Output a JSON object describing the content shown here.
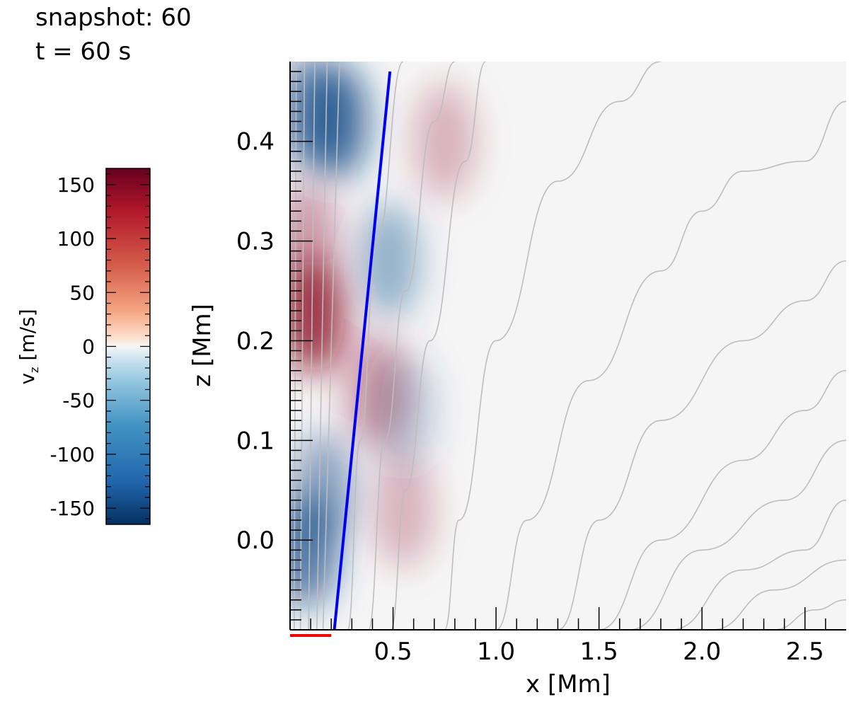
{
  "header": {
    "snapshot_text": "snapshot: 60",
    "time_text": "t = 60 s"
  },
  "colors": {
    "positive": "#8b0a26",
    "negative": "#0e4a87",
    "neutral": "#f7f7f7",
    "field_lines": "#bdbdbd",
    "blue_line": "#0000ee",
    "red_marker": "#ee0000"
  },
  "chart_data": {
    "type": "heatmap",
    "title": "",
    "xlabel": "x [Mm]",
    "ylabel": "z [Mm]",
    "xlim": [
      0.0,
      2.7
    ],
    "ylim": [
      -0.09,
      0.48
    ],
    "xticks": [
      0.5,
      1.0,
      1.5,
      2.0,
      2.5
    ],
    "xtick_labels": [
      "0.5",
      "1.0",
      "1.5",
      "2.0",
      "2.5"
    ],
    "yticks": [
      0.0,
      0.1,
      0.2,
      0.3,
      0.4
    ],
    "ytick_labels": [
      "0.0",
      "0.1",
      "0.2",
      "0.3",
      "0.4"
    ],
    "colorbar": {
      "label": "v",
      "label_sub": "z",
      "label_unit": " [m/s]",
      "range": [
        -165,
        165
      ],
      "ticks": [
        150,
        100,
        50,
        0,
        -50,
        -100,
        -150
      ],
      "tick_labels": [
        "150",
        "100",
        "50",
        "0",
        "-50",
        "-100",
        "-150"
      ],
      "colormap": "RdBu_r"
    },
    "features": [
      {
        "sign": "negative",
        "x": 0.23,
        "z": 0.42,
        "amplitude": -120
      },
      {
        "sign": "negative",
        "x": 0.1,
        "z": 0.43,
        "amplitude": -90
      },
      {
        "sign": "positive",
        "x": 0.11,
        "z": 0.225,
        "amplitude": 140
      },
      {
        "sign": "positive",
        "x": 0.08,
        "z": 0.3,
        "amplitude": 40
      },
      {
        "sign": "negative",
        "x": 0.08,
        "z": -0.01,
        "amplitude": -110
      },
      {
        "sign": "negative",
        "x": 0.16,
        "z": 0.05,
        "amplitude": -60
      },
      {
        "sign": "negative",
        "x": 0.48,
        "z": 0.28,
        "amplitude": -45
      },
      {
        "sign": "negative",
        "x": 0.55,
        "z": 0.13,
        "amplitude": -15
      },
      {
        "sign": "positive",
        "x": 0.42,
        "z": 0.15,
        "amplitude": 40
      },
      {
        "sign": "positive",
        "x": 0.55,
        "z": 0.03,
        "amplitude": 15
      },
      {
        "sign": "positive",
        "x": 0.75,
        "z": 0.4,
        "amplitude": 18
      }
    ],
    "field_lines": [
      [
        [
          0.02,
          -0.09
        ],
        [
          0.03,
          0.48
        ]
      ],
      [
        [
          0.05,
          -0.09
        ],
        [
          0.07,
          0.48
        ]
      ],
      [
        [
          0.09,
          -0.09
        ],
        [
          0.12,
          0.48
        ]
      ],
      [
        [
          0.13,
          -0.09
        ],
        [
          0.18,
          0.48
        ]
      ],
      [
        [
          0.16,
          -0.09
        ],
        [
          0.24,
          0.48
        ]
      ],
      [
        [
          0.28,
          -0.09
        ],
        [
          0.34,
          0.1
        ],
        [
          0.42,
          0.3
        ],
        [
          0.55,
          0.48
        ]
      ],
      [
        [
          0.38,
          -0.09
        ],
        [
          0.46,
          0.1
        ],
        [
          0.56,
          0.25
        ],
        [
          0.7,
          0.42
        ],
        [
          0.8,
          0.48
        ]
      ],
      [
        [
          0.49,
          -0.09
        ],
        [
          0.56,
          0.05
        ],
        [
          0.68,
          0.2
        ],
        [
          0.85,
          0.38
        ],
        [
          0.95,
          0.48
        ]
      ],
      [
        [
          0.75,
          -0.09
        ],
        [
          0.82,
          0.02
        ],
        [
          1.0,
          0.2
        ],
        [
          1.3,
          0.36
        ],
        [
          1.6,
          0.44
        ],
        [
          1.8,
          0.48
        ]
      ],
      [
        [
          1.0,
          -0.09
        ],
        [
          1.15,
          0.02
        ],
        [
          1.45,
          0.16
        ],
        [
          1.8,
          0.27
        ],
        [
          2.0,
          0.33
        ],
        [
          2.2,
          0.37
        ],
        [
          2.5,
          0.38
        ],
        [
          2.7,
          0.44
        ]
      ],
      [
        [
          1.3,
          -0.09
        ],
        [
          1.5,
          0.02
        ],
        [
          1.8,
          0.12
        ],
        [
          2.2,
          0.2
        ],
        [
          2.5,
          0.24
        ],
        [
          2.7,
          0.28
        ]
      ],
      [
        [
          1.5,
          -0.09
        ],
        [
          1.8,
          0.0
        ],
        [
          2.2,
          0.08
        ],
        [
          2.5,
          0.13
        ],
        [
          2.7,
          0.17
        ]
      ],
      [
        [
          1.65,
          -0.09
        ],
        [
          2.0,
          -0.01
        ],
        [
          2.4,
          0.04
        ],
        [
          2.7,
          0.1
        ]
      ],
      [
        [
          1.85,
          -0.09
        ],
        [
          2.2,
          -0.03
        ],
        [
          2.5,
          -0.01
        ],
        [
          2.7,
          0.04
        ]
      ],
      [
        [
          2.05,
          -0.09
        ],
        [
          2.35,
          -0.05
        ],
        [
          2.7,
          -0.02
        ]
      ],
      [
        [
          2.35,
          -0.09
        ],
        [
          2.55,
          -0.07
        ],
        [
          2.7,
          -0.06
        ]
      ]
    ],
    "blue_line": [
      [
        0.215,
        -0.09
      ],
      [
        0.485,
        0.47
      ]
    ],
    "red_marker": [
      [
        0.0,
        -0.09
      ],
      [
        0.2,
        -0.09
      ]
    ]
  }
}
